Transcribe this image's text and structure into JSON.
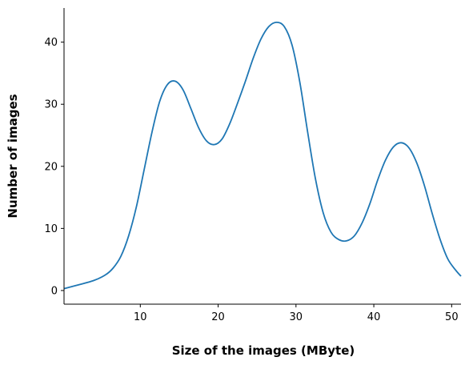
{
  "chart_data": {
    "type": "line",
    "title": "",
    "xlabel": "Size of the images (MByte)",
    "ylabel": "Number of images",
    "xlim": [
      0.2,
      51.2
    ],
    "ylim": [
      -2.2,
      45.5
    ],
    "xticks": [
      10,
      20,
      30,
      40,
      50
    ],
    "yticks": [
      0,
      10,
      20,
      30,
      40
    ],
    "grid": false,
    "legend": "none",
    "color": "#1f77b4",
    "series": [
      {
        "x": [
          0.2,
          2,
          4,
          5.5,
          6.5,
          7.5,
          8.5,
          9.5,
          10.5,
          11.5,
          12.5,
          13.5,
          14.5,
          15.5,
          16.5,
          17.5,
          18.5,
          19.5,
          20.5,
          21.5,
          22.5,
          23.5,
          24.5,
          25.5,
          26.5,
          27.5,
          28.5,
          29.5,
          30.5,
          31.5,
          32.5,
          33.5,
          34.5,
          35.5,
          36.5,
          37.5,
          38.5,
          39.5,
          40.5,
          41.5,
          42.5,
          43.5,
          44.5,
          45.5,
          46.5,
          47.5,
          48.5,
          49.5,
          50.5,
          51.2
        ],
        "values": [
          0.3,
          0.9,
          1.6,
          2.5,
          3.6,
          5.5,
          8.8,
          13.5,
          19.5,
          25.5,
          30.5,
          33.2,
          33.7,
          32.3,
          29.3,
          26.2,
          24.1,
          23.5,
          24.4,
          26.9,
          30.2,
          33.7,
          37.4,
          40.5,
          42.5,
          43.2,
          42.5,
          39.5,
          33.5,
          25.5,
          18.0,
          12.5,
          9.4,
          8.2,
          8.0,
          8.8,
          10.9,
          14.0,
          17.8,
          21.0,
          23.1,
          23.8,
          23.0,
          20.6,
          16.9,
          12.4,
          8.3,
          5.1,
          3.3,
          2.3
        ]
      }
    ]
  }
}
